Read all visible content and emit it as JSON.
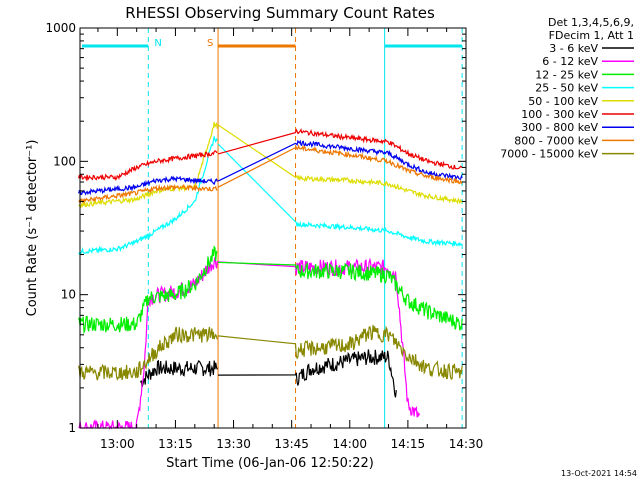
{
  "chart_data": {
    "type": "line",
    "title": "RHESSI Observing Summary Count Rates",
    "xlabel": "Start Time (06-Jan-06 12:50:22)",
    "ylabel": "Count Rate (s⁻¹ detector⁻¹)",
    "yscale": "log",
    "ylim": [
      1,
      1000
    ],
    "xlim": [
      "12:50:22",
      "14:30:00"
    ],
    "x_ticks": [
      "13:00",
      "13:15",
      "13:30",
      "13:45",
      "14:00",
      "14:15",
      "14:30"
    ],
    "y_ticks": [
      "1",
      "10",
      "100",
      "1000"
    ],
    "legend_header": [
      "Det 1,3,4,5,6,9,",
      "FDecim 1, Att 1"
    ],
    "legend_placement": "right",
    "footer_date": "13-Oct-2021 14:54",
    "flags": [
      {
        "label": "N",
        "color": "#00e5ee",
        "segments": [
          [
            "12:50:22",
            "13:08:00"
          ],
          [
            "14:09:00",
            "14:29:00"
          ]
        ]
      },
      {
        "label": "S",
        "color": "#ee7700",
        "segments": [
          [
            "13:26:00",
            "13:46:00"
          ]
        ]
      }
    ],
    "boundaries": [
      {
        "time": "13:08:00",
        "color": "#00e5ee",
        "style": "dashed"
      },
      {
        "time": "13:26:00",
        "color": "#ee7700",
        "style": "solid"
      },
      {
        "time": "13:46:00",
        "color": "#ee7700",
        "style": "dashed"
      },
      {
        "time": "14:09:00",
        "color": "#00e5ee",
        "style": "solid"
      },
      {
        "time": "14:29:00",
        "color": "#00e5ee",
        "style": "dashed"
      }
    ],
    "series": [
      {
        "name": "3 - 6 keV",
        "color": "#000000",
        "x": [
          "13:06",
          "13:08",
          "13:10",
          "13:15",
          "13:20",
          "13:25",
          "13:45",
          "13:50",
          "14:00",
          "14:05",
          "14:10",
          "14:12"
        ],
        "y": [
          2.2,
          2.5,
          2.8,
          2.8,
          2.8,
          2.8,
          2.2,
          2.8,
          3.2,
          3.4,
          3.4,
          1.8
        ]
      },
      {
        "name": "6 - 12 keV",
        "color": "#ff00ff",
        "x": [
          "12:50",
          "13:05",
          "13:07",
          "13:08",
          "13:15",
          "13:20",
          "13:25",
          "13:45",
          "14:00",
          "14:10",
          "14:12",
          "14:15",
          "14:18"
        ],
        "y": [
          1.0,
          1.0,
          3.0,
          9.5,
          10.5,
          12,
          18,
          16,
          16,
          16,
          14,
          1.5,
          1.2
        ]
      },
      {
        "name": "12 - 25 keV",
        "color": "#00ee00",
        "x": [
          "12:50",
          "13:05",
          "13:08",
          "13:15",
          "13:20",
          "13:25",
          "13:45",
          "14:00",
          "14:10",
          "14:15",
          "14:20",
          "14:29"
        ],
        "y": [
          6,
          6,
          9.5,
          10,
          12,
          20,
          15,
          15,
          14,
          9,
          7.5,
          6
        ]
      },
      {
        "name": "25 - 50 keV",
        "color": "#00ffff",
        "x": [
          "12:50",
          "13:00",
          "13:05",
          "13:10",
          "13:15",
          "13:20",
          "13:25",
          "13:45",
          "14:00",
          "14:10",
          "14:15",
          "14:20",
          "14:29"
        ],
        "y": [
          21,
          22,
          25,
          30,
          37,
          50,
          150,
          34,
          32,
          30,
          27,
          25,
          24
        ]
      },
      {
        "name": "50 - 100 keV",
        "color": "#dddd00",
        "x": [
          "12:50",
          "13:05",
          "13:10",
          "13:15",
          "13:20",
          "13:25",
          "13:45",
          "14:00",
          "14:10",
          "14:15",
          "14:20",
          "14:29"
        ],
        "y": [
          47,
          52,
          60,
          63,
          63,
          190,
          75,
          72,
          68,
          60,
          55,
          50
        ]
      },
      {
        "name": "100 - 300 keV",
        "color": "#ee0000",
        "x": [
          "12:50",
          "13:00",
          "13:05",
          "13:10",
          "13:15",
          "13:20",
          "13:25",
          "13:45",
          "14:00",
          "14:10",
          "14:15",
          "14:20",
          "14:29"
        ],
        "y": [
          76,
          76,
          90,
          100,
          105,
          110,
          115,
          170,
          150,
          140,
          115,
          100,
          88
        ]
      },
      {
        "name": "300 - 800 keV",
        "color": "#0000ee",
        "x": [
          "12:50",
          "13:05",
          "13:10",
          "13:15",
          "13:20",
          "13:25",
          "13:45",
          "14:00",
          "14:10",
          "14:15",
          "14:20",
          "14:29"
        ],
        "y": [
          58,
          64,
          72,
          74,
          72,
          70,
          140,
          125,
          115,
          95,
          82,
          75
        ]
      },
      {
        "name": "800 - 7000 keV",
        "color": "#ee7700",
        "x": [
          "12:50",
          "13:05",
          "13:10",
          "13:15",
          "13:20",
          "13:25",
          "13:45",
          "14:00",
          "14:10",
          "14:15",
          "14:20",
          "14:29"
        ],
        "y": [
          50,
          58,
          63,
          64,
          63,
          62,
          128,
          112,
          100,
          85,
          77,
          70
        ]
      },
      {
        "name": "7000 - 15000 keV",
        "color": "#888800",
        "x": [
          "12:50",
          "13:05",
          "13:10",
          "13:15",
          "13:20",
          "13:25",
          "13:45",
          "14:00",
          "14:05",
          "14:10",
          "14:15",
          "14:20",
          "14:29"
        ],
        "y": [
          2.6,
          2.6,
          3.8,
          5,
          5,
          5,
          3.8,
          4.2,
          5.2,
          5,
          3.5,
          2.8,
          2.6
        ]
      }
    ]
  }
}
